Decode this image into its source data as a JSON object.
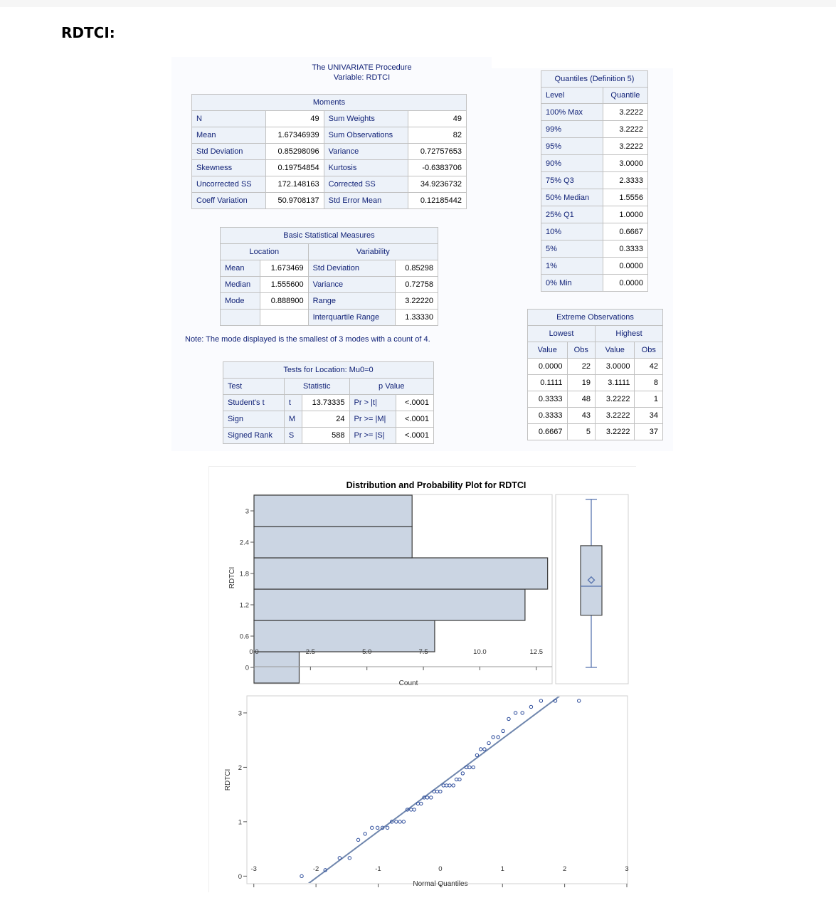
{
  "document": {
    "title": "RDTCI:"
  },
  "procedure": {
    "title": "The UNIVARIATE Procedure",
    "variable": "Variable: RDTCI"
  },
  "moments": {
    "title": "Moments",
    "rows": [
      {
        "l1": "N",
        "v1": "49",
        "l2": "Sum Weights",
        "v2": "49"
      },
      {
        "l1": "Mean",
        "v1": "1.67346939",
        "l2": "Sum Observations",
        "v2": "82"
      },
      {
        "l1": "Std Deviation",
        "v1": "0.85298096",
        "l2": "Variance",
        "v2": "0.72757653"
      },
      {
        "l1": "Skewness",
        "v1": "0.19754854",
        "l2": "Kurtosis",
        "v2": "-0.6383706"
      },
      {
        "l1": "Uncorrected SS",
        "v1": "172.148163",
        "l2": "Corrected SS",
        "v2": "34.9236732"
      },
      {
        "l1": "Coeff Variation",
        "v1": "50.9708137",
        "l2": "Std Error Mean",
        "v2": "0.12185442"
      }
    ]
  },
  "basic_measures": {
    "title": "Basic Statistical Measures",
    "location_header": "Location",
    "variability_header": "Variability",
    "rows": [
      {
        "l1": "Mean",
        "v1": "1.673469",
        "l2": "Std Deviation",
        "v2": "0.85298"
      },
      {
        "l1": "Median",
        "v1": "1.555600",
        "l2": "Variance",
        "v2": "0.72758"
      },
      {
        "l1": "Mode",
        "v1": "0.888900",
        "l2": "Range",
        "v2": "3.22220"
      },
      {
        "l1": "",
        "v1": "",
        "l2": "Interquartile Range",
        "v2": "1.33330"
      }
    ],
    "note": "Note: The mode displayed is the smallest of 3 modes with a count of 4."
  },
  "tests_location": {
    "title": "Tests for Location: Mu0=0",
    "headers": {
      "test": "Test",
      "statistic": "Statistic",
      "pvalue": "p Value"
    },
    "rows": [
      {
        "test": "Student's t",
        "sym": "t",
        "stat": "13.73335",
        "plabel": "Pr > |t|",
        "p": "<.0001"
      },
      {
        "test": "Sign",
        "sym": "M",
        "stat": "24",
        "plabel": "Pr >= |M|",
        "p": "<.0001"
      },
      {
        "test": "Signed Rank",
        "sym": "S",
        "stat": "588",
        "plabel": "Pr >= |S|",
        "p": "<.0001"
      }
    ]
  },
  "quantiles": {
    "title": "Quantiles (Definition 5)",
    "headers": {
      "level": "Level",
      "quantile": "Quantile"
    },
    "rows": [
      {
        "level": "100% Max",
        "q": "3.2222"
      },
      {
        "level": "99%",
        "q": "3.2222"
      },
      {
        "level": "95%",
        "q": "3.2222"
      },
      {
        "level": "90%",
        "q": "3.0000"
      },
      {
        "level": "75% Q3",
        "q": "2.3333"
      },
      {
        "level": "50% Median",
        "q": "1.5556"
      },
      {
        "level": "25% Q1",
        "q": "1.0000"
      },
      {
        "level": "10%",
        "q": "0.6667"
      },
      {
        "level": "5%",
        "q": "0.3333"
      },
      {
        "level": "1%",
        "q": "0.0000"
      },
      {
        "level": "0% Min",
        "q": "0.0000"
      }
    ]
  },
  "extremes": {
    "title": "Extreme Observations",
    "lowest": "Lowest",
    "highest": "Highest",
    "value": "Value",
    "obs": "Obs",
    "rows": [
      {
        "lv": "0.0000",
        "lo": "22",
        "hv": "3.0000",
        "ho": "42"
      },
      {
        "lv": "0.1111",
        "lo": "19",
        "hv": "3.1111",
        "ho": "8"
      },
      {
        "lv": "0.3333",
        "lo": "48",
        "hv": "3.2222",
        "ho": "1"
      },
      {
        "lv": "0.3333",
        "lo": "43",
        "hv": "3.2222",
        "ho": "34"
      },
      {
        "lv": "0.6667",
        "lo": "5",
        "hv": "3.2222",
        "ho": "37"
      }
    ]
  },
  "colors": {
    "bar_fill": "#cbd5e3",
    "bar_stroke": "#3a3a3a",
    "accent": "#5b77b0",
    "marker": "#2a4a9a",
    "table_header": "#edf2f9",
    "table_text": "#112277"
  },
  "chart_data": [
    {
      "type": "bar",
      "orientation": "horizontal",
      "title": "Distribution and Probability Plot for RDTCI",
      "xlabel": "Count",
      "ylabel": "RDTCI",
      "categories": [
        "0",
        "0.6",
        "1.2",
        "1.8",
        "2.4",
        "3"
      ],
      "values": [
        2,
        8,
        12,
        13,
        7,
        7
      ],
      "xticks": [
        "0.0",
        "2.5",
        "5.0",
        "7.5",
        "10.0",
        "12.5"
      ],
      "yticks": [
        "0",
        "0.6",
        "1.2",
        "1.8",
        "2.4",
        "3"
      ],
      "xlim": [
        0,
        13.2
      ],
      "ylim": [
        -0.3,
        3.3
      ],
      "grid": false
    },
    {
      "type": "box",
      "min": 0.0,
      "q1": 1.0,
      "median": 1.5556,
      "mean": 1.673469,
      "q3": 2.3333,
      "max": 3.2222
    },
    {
      "type": "scatter",
      "title": "",
      "xlabel": "Normal Quantiles",
      "ylabel": "RDTCI",
      "xticks": [
        "-3",
        "-2",
        "-1",
        "0",
        "1",
        "2",
        "3"
      ],
      "yticks": [
        "0",
        "1",
        "2",
        "3"
      ],
      "xlim": [
        -3.1,
        3.0
      ],
      "ylim": [
        -0.1,
        3.3
      ],
      "reference_line": {
        "intercept": 1.673469,
        "slope": 0.85298
      },
      "points": [
        [
          -2.23,
          0.0
        ],
        [
          -1.85,
          0.1111
        ],
        [
          -1.62,
          0.3333
        ],
        [
          -1.46,
          0.3333
        ],
        [
          -1.32,
          0.6667
        ],
        [
          -1.21,
          0.7778
        ],
        [
          -1.1,
          0.8889
        ],
        [
          -1.01,
          0.8889
        ],
        [
          -0.93,
          0.8889
        ],
        [
          -0.85,
          0.8889
        ],
        [
          -0.78,
          1.0
        ],
        [
          -0.71,
          1.0
        ],
        [
          -0.65,
          1.0
        ],
        [
          -0.59,
          1.0
        ],
        [
          -0.53,
          1.2222
        ],
        [
          -0.47,
          1.2222
        ],
        [
          -0.42,
          1.2222
        ],
        [
          -0.36,
          1.3333
        ],
        [
          -0.31,
          1.3333
        ],
        [
          -0.26,
          1.4444
        ],
        [
          -0.21,
          1.4444
        ],
        [
          -0.15,
          1.4444
        ],
        [
          -0.1,
          1.5556
        ],
        [
          -0.05,
          1.5556
        ],
        [
          0.0,
          1.5556
        ],
        [
          0.05,
          1.6667
        ],
        [
          0.1,
          1.6667
        ],
        [
          0.15,
          1.6667
        ],
        [
          0.21,
          1.6667
        ],
        [
          0.26,
          1.7778
        ],
        [
          0.31,
          1.7778
        ],
        [
          0.36,
          1.8889
        ],
        [
          0.42,
          2.0
        ],
        [
          0.47,
          2.0
        ],
        [
          0.53,
          2.0
        ],
        [
          0.59,
          2.2222
        ],
        [
          0.65,
          2.3333
        ],
        [
          0.71,
          2.3333
        ],
        [
          0.78,
          2.4444
        ],
        [
          0.85,
          2.5556
        ],
        [
          0.93,
          2.5556
        ],
        [
          1.01,
          2.6667
        ],
        [
          1.1,
          2.8889
        ],
        [
          1.21,
          3.0
        ],
        [
          1.32,
          3.0
        ],
        [
          1.46,
          3.1111
        ],
        [
          1.62,
          3.2222
        ],
        [
          1.85,
          3.2222
        ],
        [
          2.23,
          3.2222
        ]
      ]
    }
  ]
}
